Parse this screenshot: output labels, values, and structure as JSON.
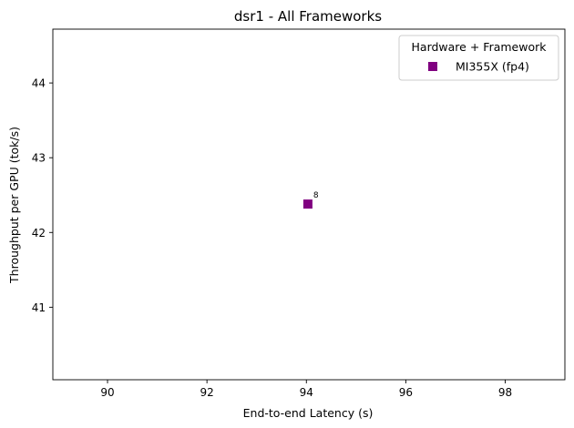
{
  "chart_data": {
    "type": "scatter",
    "title": "dsr1 - All Frameworks",
    "xlabel": "End-to-end Latency (s)",
    "ylabel": "Throughput per GPU (tok/s)",
    "xlim": [
      88.9,
      99.2
    ],
    "ylim": [
      40.03,
      44.72
    ],
    "xticks": [
      90,
      92,
      94,
      96,
      98
    ],
    "yticks": [
      41,
      42,
      43,
      44
    ],
    "grid": false,
    "legend": {
      "title": "Hardware + Framework",
      "position": "top-right"
    },
    "series": [
      {
        "name": "MI355X (fp4)",
        "color": "#800080",
        "marker": "square",
        "points": [
          {
            "x": 94.03,
            "y": 42.38,
            "label": "8"
          }
        ]
      }
    ]
  }
}
